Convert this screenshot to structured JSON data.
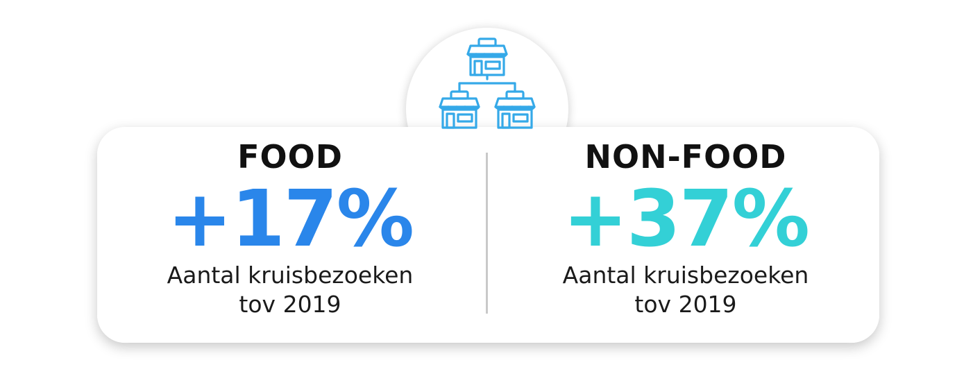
{
  "colors": {
    "food_accent": "#2a86ea",
    "nonfood_accent": "#33d0d6",
    "icon_stroke": "#35a9e8"
  },
  "icon": {
    "name": "store-network-icon"
  },
  "food": {
    "label": "FOOD",
    "value": "+17%",
    "caption_line1": "Aantal kruisbezoeken",
    "caption_line2": "tov 2019"
  },
  "nonfood": {
    "label": "NON-FOOD",
    "value": "+37%",
    "caption_line1": "Aantal kruisbezoeken",
    "caption_line2": "tov 2019"
  }
}
